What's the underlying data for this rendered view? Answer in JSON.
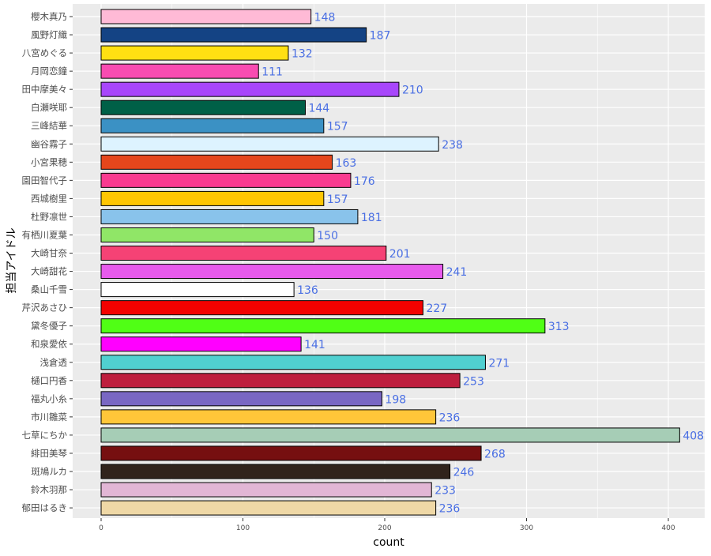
{
  "chart_data": {
    "type": "bar",
    "orientation": "horizontal",
    "title": "",
    "xlabel": "count",
    "ylabel": "担当アイドル",
    "xlim": [
      0,
      430
    ],
    "xticks": [
      0,
      100,
      200,
      300,
      400
    ],
    "grid": true,
    "background": "#EBEBEB",
    "label_color": "#4A6FE3",
    "categories": [
      "櫻木真乃",
      "風野灯織",
      "八宮めぐる",
      "月岡恋鐘",
      "田中摩美々",
      "白瀬咲耶",
      "三峰結華",
      "幽谷霧子",
      "小宮果穂",
      "園田智代子",
      "西城樹里",
      "杜野凛世",
      "有栖川夏葉",
      "大崎甘奈",
      "大崎甜花",
      "桑山千雪",
      "芹沢あさひ",
      "黛冬優子",
      "和泉愛依",
      "浅倉透",
      "樋口円香",
      "福丸小糸",
      "市川雛菜",
      "七草にちか",
      "緋田美琴",
      "斑鳩ルカ",
      "鈴木羽那",
      "郁田はるき"
    ],
    "values": [
      148,
      187,
      132,
      111,
      210,
      144,
      157,
      238,
      163,
      176,
      157,
      181,
      150,
      201,
      241,
      136,
      227,
      313,
      141,
      271,
      253,
      198,
      236,
      408,
      268,
      246,
      233,
      236
    ],
    "colors": [
      "#FFBAD6",
      "#144384",
      "#FFE012",
      "#F84CB1",
      "#A846FB",
      "#006047",
      "#3B91C4",
      "#DDF3FF",
      "#E5461C",
      "#F93B90",
      "#FFC602",
      "#89C3EB",
      "#90E667",
      "#F54275",
      "#E75BEC",
      "#FFFFFF",
      "#F30100",
      "#50FF15",
      "#FF00FF",
      "#50D0D0",
      "#BE1E3E",
      "#7967C3",
      "#FFC639",
      "#A6CDB6",
      "#760F10",
      "#30231C",
      "#E2B6D5",
      "#EFD8A6"
    ]
  }
}
